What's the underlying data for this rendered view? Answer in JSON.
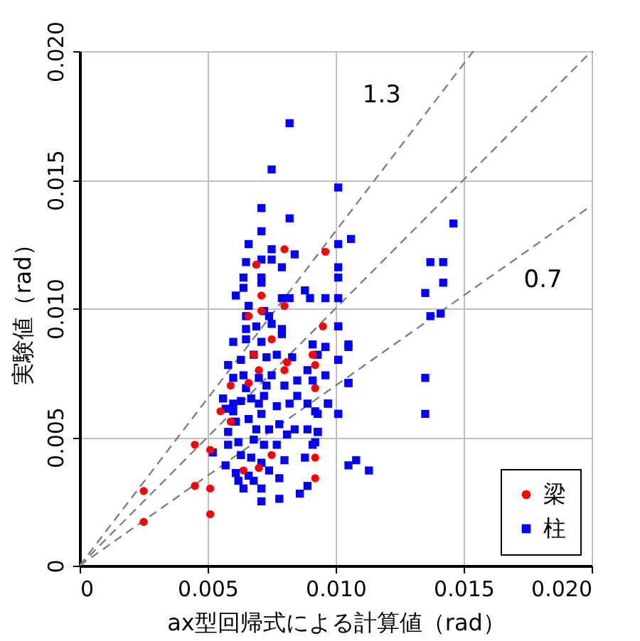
{
  "chart_data": {
    "type": "scatter",
    "xlabel": "ax型回帰式による計算値（rad）",
    "ylabel": "実験値（rad）",
    "xlim": [
      0,
      0.02
    ],
    "ylim": [
      0,
      0.02
    ],
    "xticks": [
      0,
      0.005,
      {
        "value": 0.01,
        "label": "0.010"
      },
      0.015,
      {
        "value": 0.02,
        "label": "0.020"
      }
    ],
    "yticks": [
      0,
      0.005,
      {
        "value": 0.01,
        "label": "0.010"
      },
      0.015,
      {
        "value": 0.02,
        "label": "0.020"
      }
    ],
    "grid": true,
    "legend": "bottom right",
    "annotations": [
      "1.3",
      "0.7"
    ],
    "series": [
      {
        "type": "line",
        "color": "#808080",
        "line_style": "dashed",
        "x": [
          0,
          0.01538
        ],
        "values": [
          0,
          0.02
        ]
      },
      {
        "type": "line",
        "color": "#808080",
        "line_style": "dashed",
        "x": [
          0,
          0.02
        ],
        "values": [
          0,
          0.02
        ]
      },
      {
        "type": "line",
        "color": "#808080",
        "line_style": "dashed",
        "x": [
          0,
          0.02
        ],
        "values": [
          0,
          0.014
        ]
      },
      {
        "name": "梁",
        "color": "#ff0000",
        "marker": "circle",
        "x": [
          0.008,
          0.0096,
          0.0069,
          0.0071,
          0.008,
          0.0066,
          0.0095,
          0.0092,
          0.0092,
          0.0092,
          0.0092,
          0.0091,
          0.0059,
          0.0055,
          0.0059,
          0.0045,
          0.0051,
          0.0075,
          0.007,
          0.0064,
          0.0045,
          0.0051,
          0.0051,
          0.0068,
          0.007,
          0.0066,
          0.008,
          0.0081,
          0.0071,
          0.0075,
          0.0025,
          0.0025
        ],
        "values": [
          0.0123,
          0.0122,
          0.0117,
          0.0105,
          0.0101,
          0.0097,
          0.0093,
          0.0078,
          0.0069,
          0.0042,
          0.0034,
          0.0082,
          0.007,
          0.006,
          0.0056,
          0.0047,
          0.0045,
          0.0043,
          0.0038,
          0.0037,
          0.0031,
          0.003,
          0.002,
          0.0082,
          0.0076,
          0.0071,
          0.0076,
          0.0079,
          0.0099,
          0.0088,
          0.0029,
          0.0017
        ]
      },
      {
        "name": "柱",
        "color": "#0000ff",
        "marker": "square",
        "x": [
          0.0082,
          0.0075,
          0.0101,
          0.0071,
          0.0082,
          0.0071,
          0.0066,
          0.0075,
          0.0101,
          0.0106,
          0.0084,
          0.0065,
          0.0071,
          0.0075,
          0.0079,
          0.0101,
          0.0101,
          0.0064,
          0.0071,
          0.0071,
          0.0064,
          0.0061,
          0.0088,
          0.009,
          0.0096,
          0.0101,
          0.0066,
          0.0079,
          0.0082,
          0.0072,
          0.0074,
          0.0146,
          0.0137,
          0.0142,
          0.0142,
          0.0135,
          0.0137,
          0.0141,
          0.0135,
          0.0135,
          0.0105,
          0.0105,
          0.0101,
          0.0097,
          0.0093,
          0.0101,
          0.0101,
          0.0096,
          0.0105,
          0.0108,
          0.0113,
          0.0093,
          0.0092,
          0.0065,
          0.0072,
          0.0079,
          0.0065,
          0.0069,
          0.0075,
          0.006,
          0.0065,
          0.0071,
          0.0079,
          0.0091,
          0.0096,
          0.0105,
          0.0101,
          0.0101,
          0.0105,
          0.0058,
          0.0063,
          0.0068,
          0.0073,
          0.0077,
          0.0083,
          0.0089,
          0.0093,
          0.0056,
          0.006,
          0.0064,
          0.007,
          0.0075,
          0.008,
          0.0085,
          0.0085,
          0.0091,
          0.0096,
          0.0101,
          0.0097,
          0.0092,
          0.0089,
          0.0057,
          0.006,
          0.0063,
          0.0067,
          0.0072,
          0.0077,
          0.0082,
          0.0084,
          0.0089,
          0.0093,
          0.0091,
          0.0088,
          0.0058,
          0.0061,
          0.0066,
          0.0071,
          0.0078,
          0.0081,
          0.0074,
          0.0069,
          0.0058,
          0.0062,
          0.0068,
          0.0072,
          0.0077,
          0.008,
          0.0063,
          0.0067,
          0.0071,
          0.0074,
          0.0061,
          0.0066,
          0.0068,
          0.0062,
          0.0064,
          0.0071,
          0.0071,
          0.0078,
          0.0078,
          0.0086,
          0.0089,
          0.0052,
          0.0057,
          0.006,
          0.007,
          0.0065,
          0.0073
        ],
        "values": [
          0.0172,
          0.0154,
          0.0147,
          0.0139,
          0.0135,
          0.013,
          0.0125,
          0.0123,
          0.0125,
          0.0127,
          0.0121,
          0.0118,
          0.0119,
          0.0119,
          0.0116,
          0.0116,
          0.0112,
          0.0112,
          0.0112,
          0.011,
          0.0108,
          0.0105,
          0.0107,
          0.0104,
          0.0104,
          0.0104,
          0.0101,
          0.0104,
          0.0104,
          0.0099,
          0.0097,
          0.0133,
          0.0118,
          0.0118,
          0.011,
          0.0106,
          0.0097,
          0.0098,
          0.0073,
          0.0059,
          0.0085,
          0.0071,
          0.0059,
          0.0063,
          0.0059,
          0.008,
          0.0093,
          0.0085,
          0.0039,
          0.0041,
          0.0037,
          0.0052,
          0.0048,
          0.0097,
          0.0099,
          0.0092,
          0.0092,
          0.0093,
          0.0094,
          0.0087,
          0.0088,
          0.0087,
          0.009,
          0.0086,
          0.0085,
          0.0086,
          0.0093,
          0.008,
          0.0071,
          0.0078,
          0.008,
          0.0082,
          0.0081,
          0.0082,
          0.0081,
          0.0076,
          0.0082,
          0.0065,
          0.0073,
          0.0074,
          0.0073,
          0.0074,
          0.007,
          0.0072,
          0.0066,
          0.0072,
          0.0074,
          0.0059,
          0.0063,
          0.006,
          0.0063,
          0.0061,
          0.0063,
          0.0064,
          0.0065,
          0.0066,
          0.0062,
          0.0063,
          0.0053,
          0.0053,
          0.0052,
          0.0047,
          0.0042,
          0.0052,
          0.0056,
          0.0057,
          0.0059,
          0.0055,
          0.0051,
          0.0053,
          0.0053,
          0.0047,
          0.0048,
          0.0049,
          0.0047,
          0.0047,
          0.0041,
          0.0043,
          0.0042,
          0.004,
          0.0037,
          0.0036,
          0.0035,
          0.0033,
          0.0033,
          0.003,
          0.003,
          0.0025,
          0.0026,
          0.0034,
          0.0028,
          0.0031,
          0.0044,
          0.0039,
          0.006,
          0.0063,
          0.0069,
          0.007
        ]
      }
    ]
  }
}
